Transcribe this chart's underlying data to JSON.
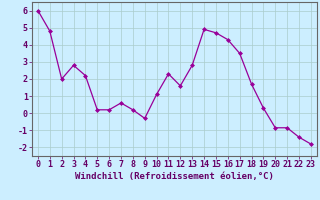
{
  "x": [
    0,
    1,
    2,
    3,
    4,
    5,
    6,
    7,
    8,
    9,
    10,
    11,
    12,
    13,
    14,
    15,
    16,
    17,
    18,
    19,
    20,
    21,
    22,
    23
  ],
  "y": [
    6.0,
    4.8,
    2.0,
    2.8,
    2.2,
    0.2,
    0.2,
    0.6,
    0.2,
    -0.3,
    1.1,
    2.3,
    1.6,
    2.8,
    4.9,
    4.7,
    4.3,
    3.5,
    1.7,
    0.3,
    -0.85,
    -0.85,
    -1.4,
    -1.8
  ],
  "line_color": "#990099",
  "marker": "D",
  "markersize": 2.0,
  "linewidth": 0.9,
  "bg_color": "#cceeff",
  "grid_color": "#aacccc",
  "xlabel": "Windchill (Refroidissement éolien,°C)",
  "xlabel_fontsize": 6.5,
  "tick_fontsize": 6.0,
  "ylim": [
    -2.5,
    6.5
  ],
  "xlim": [
    -0.5,
    23.5
  ],
  "yticks": [
    -2,
    -1,
    0,
    1,
    2,
    3,
    4,
    5,
    6
  ],
  "xticks": [
    0,
    1,
    2,
    3,
    4,
    5,
    6,
    7,
    8,
    9,
    10,
    11,
    12,
    13,
    14,
    15,
    16,
    17,
    18,
    19,
    20,
    21,
    22,
    23
  ],
  "spine_color": "#666666",
  "text_color": "#660066"
}
